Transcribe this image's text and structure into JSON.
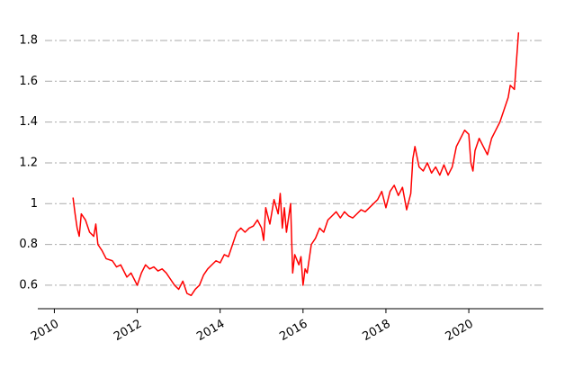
{
  "chart_data": {
    "type": "line",
    "color": "#ff0000",
    "grid": true,
    "x": [
      2010.45,
      2010.5,
      2010.55,
      2010.6,
      2010.65,
      2010.75,
      2010.85,
      2010.95,
      2011.0,
      2011.05,
      2011.15,
      2011.25,
      2011.4,
      2011.5,
      2011.6,
      2011.75,
      2011.85,
      2011.95,
      2012.0,
      2012.1,
      2012.2,
      2012.3,
      2012.4,
      2012.5,
      2012.6,
      2012.7,
      2012.8,
      2012.9,
      2013.0,
      2013.1,
      2013.2,
      2013.3,
      2013.4,
      2013.5,
      2013.6,
      2013.7,
      2013.8,
      2013.9,
      2014.0,
      2014.1,
      2014.2,
      2014.3,
      2014.4,
      2014.5,
      2014.6,
      2014.7,
      2014.8,
      2014.9,
      2015.0,
      2015.05,
      2015.1,
      2015.2,
      2015.3,
      2015.4,
      2015.45,
      2015.5,
      2015.55,
      2015.6,
      2015.7,
      2015.75,
      2015.8,
      2015.9,
      2015.95,
      2016.0,
      2016.05,
      2016.1,
      2016.2,
      2016.3,
      2016.4,
      2016.5,
      2016.6,
      2016.7,
      2016.8,
      2016.9,
      2017.0,
      2017.1,
      2017.2,
      2017.3,
      2017.4,
      2017.5,
      2017.6,
      2017.7,
      2017.8,
      2017.9,
      2018.0,
      2018.1,
      2018.2,
      2018.3,
      2018.4,
      2018.5,
      2018.6,
      2018.65,
      2018.7,
      2018.8,
      2018.9,
      2019.0,
      2019.1,
      2019.2,
      2019.3,
      2019.4,
      2019.5,
      2019.6,
      2019.7,
      2019.8,
      2019.9,
      2020.0,
      2020.05,
      2020.1,
      2020.15,
      2020.25,
      2020.35,
      2020.45,
      2020.55,
      2020.65,
      2020.75,
      2020.85,
      2020.95,
      2021.0,
      2021.1,
      2021.15,
      2021.2
    ],
    "values": [
      1.03,
      0.95,
      0.88,
      0.84,
      0.95,
      0.92,
      0.86,
      0.84,
      0.9,
      0.8,
      0.77,
      0.73,
      0.72,
      0.69,
      0.7,
      0.64,
      0.66,
      0.62,
      0.6,
      0.66,
      0.7,
      0.68,
      0.69,
      0.67,
      0.68,
      0.66,
      0.63,
      0.6,
      0.58,
      0.62,
      0.56,
      0.55,
      0.58,
      0.6,
      0.65,
      0.68,
      0.7,
      0.72,
      0.71,
      0.75,
      0.74,
      0.8,
      0.86,
      0.88,
      0.86,
      0.88,
      0.89,
      0.92,
      0.88,
      0.82,
      0.98,
      0.9,
      1.02,
      0.95,
      1.05,
      0.88,
      0.98,
      0.86,
      1.0,
      0.66,
      0.75,
      0.7,
      0.74,
      0.6,
      0.68,
      0.66,
      0.8,
      0.83,
      0.88,
      0.86,
      0.92,
      0.94,
      0.96,
      0.93,
      0.96,
      0.94,
      0.93,
      0.95,
      0.97,
      0.96,
      0.98,
      1.0,
      1.02,
      1.06,
      0.98,
      1.06,
      1.09,
      1.04,
      1.08,
      0.97,
      1.05,
      1.22,
      1.28,
      1.18,
      1.16,
      1.2,
      1.15,
      1.18,
      1.14,
      1.19,
      1.14,
      1.18,
      1.28,
      1.32,
      1.36,
      1.34,
      1.2,
      1.16,
      1.26,
      1.32,
      1.28,
      1.24,
      1.32,
      1.36,
      1.4,
      1.46,
      1.52,
      1.58,
      1.56,
      1.7,
      1.84
    ],
    "xlim": [
      2009.6,
      2021.8
    ],
    "xticks": [
      2010,
      2012,
      2014,
      2016,
      2018,
      2020
    ],
    "ylim": [
      0.485,
      1.866
    ],
    "yticks": [
      0.6,
      0.8,
      1.0,
      1.2,
      1.4,
      1.6,
      1.8
    ]
  }
}
